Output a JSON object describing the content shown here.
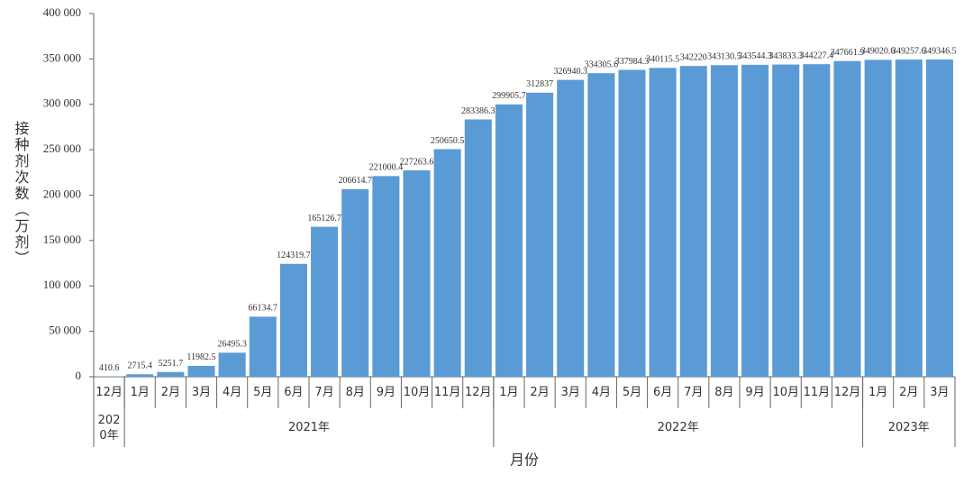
{
  "chart_data": {
    "type": "bar",
    "y_label": "接种剂次数（万剂）",
    "x_label": "月份",
    "color": "#5b9bd5",
    "ylim": [
      0,
      400000
    ],
    "yticks": [
      0,
      {
        "value": 50000,
        "label": "50 000"
      },
      {
        "value": 100000,
        "label": "100 000"
      },
      {
        "value": 150000,
        "label": "150 000"
      },
      {
        "value": 200000,
        "label": "200 000"
      },
      {
        "value": 250000,
        "label": "250 000"
      },
      {
        "value": 300000,
        "label": "300 000"
      },
      {
        "value": 350000,
        "label": "350 000"
      },
      {
        "value": 400000,
        "label": "400 000"
      }
    ],
    "groups": [
      {
        "label": "2020年",
        "categories": [
          "12月"
        ],
        "values": [
          410.6
        ]
      },
      {
        "label": "2021年",
        "categories": [
          "1月",
          "2月",
          "3月",
          "4月",
          "5月",
          "6月",
          "7月",
          "8月",
          "9月",
          "10月",
          "11月",
          "12月"
        ],
        "values": [
          2715.4,
          5251.7,
          11982.5,
          26495.3,
          66134.7,
          124319.7,
          165126.7,
          206614.7,
          221000.4,
          227263.6,
          250650.5,
          283386.3
        ]
      },
      {
        "label": "2022年",
        "categories": [
          "1月",
          "2月",
          "3月",
          "4月",
          "5月",
          "6月",
          "7月",
          "8月",
          "9月",
          "10月",
          "11月",
          "12月"
        ],
        "values": [
          299905.7,
          312837,
          326940.3,
          334305.6,
          337984.3,
          340115.5,
          342220,
          343130.5,
          343544.3,
          343833.3,
          344227.4,
          347661.9
        ]
      },
      {
        "label": "2023年",
        "categories": [
          "1月",
          "2月",
          "3月"
        ],
        "values": [
          349020.6,
          349257.6,
          349346.5
        ]
      }
    ]
  }
}
